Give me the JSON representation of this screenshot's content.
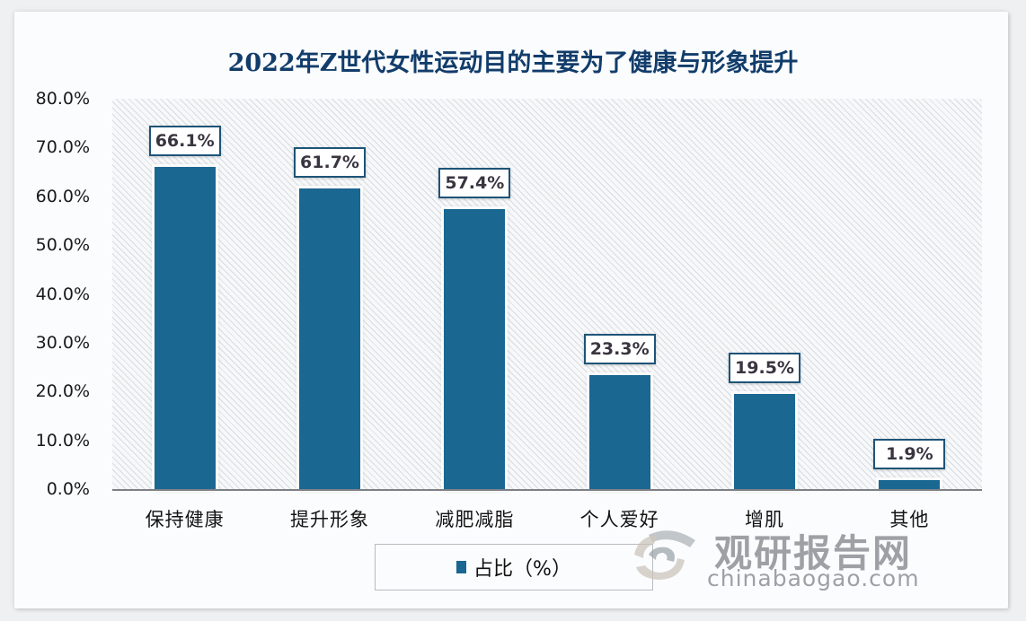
{
  "chart_data": {
    "type": "bar",
    "title": "2022年Z世代女性运动目的主要为了健康与形象提升",
    "categories": [
      "保持健康",
      "提升形象",
      "减肥减脂",
      "个人爱好",
      "增肌",
      "其他"
    ],
    "series": [
      {
        "name": "占比（%）",
        "values": [
          66.1,
          61.7,
          57.4,
          23.3,
          19.5,
          1.9
        ],
        "labels": [
          "66.1%",
          "61.7%",
          "57.4%",
          "23.3%",
          "19.5%",
          "1.9%"
        ],
        "color": "#1a6791"
      }
    ],
    "xlabel": "",
    "ylabel": "",
    "ylim": [
      0,
      80
    ],
    "yticks": [
      "0.0%",
      "10.0%",
      "20.0%",
      "30.0%",
      "40.0%",
      "50.0%",
      "60.0%",
      "70.0%",
      "80.0%"
    ],
    "grid": false,
    "legend_position": "bottom",
    "background": "diagonal-hatch"
  },
  "legend": {
    "label": "占比（%）"
  },
  "watermark": {
    "cn": "观研报告网",
    "en": "chinabaogao.com"
  },
  "colors": {
    "bar": "#1a6791",
    "title": "#123d6b",
    "label_border": "#1d5478"
  }
}
